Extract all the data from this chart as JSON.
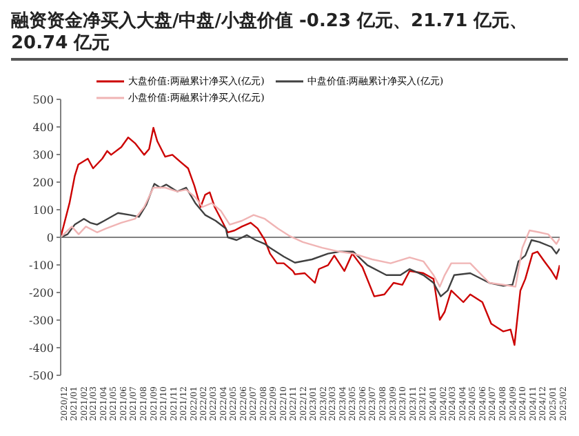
{
  "chart_data": {
    "type": "line",
    "title": "融资资金净买入大盘/中盘/小盘价值 -0.23 亿元、21.71 亿元、20.74 亿元",
    "legend": "top",
    "marker": "none",
    "line_style": "solid",
    "ylim": [
      -500,
      500
    ],
    "yticks": [
      -500,
      -400,
      -300,
      -200,
      -100,
      0,
      100,
      200,
      300,
      400,
      500
    ],
    "xlim": [
      "2020-12-01",
      "2025-02-01"
    ],
    "xticks": [
      {
        "value": "2020-12",
        "label": "2020/12"
      },
      {
        "value": "2021-01",
        "label": "2021/01"
      },
      {
        "value": "2021-02",
        "label": "2021/02"
      },
      {
        "value": "2021-03",
        "label": "2021/03"
      },
      {
        "value": "2021-04",
        "label": "2021/04"
      },
      {
        "value": "2021-05",
        "label": "2021/05"
      },
      {
        "value": "2021-06",
        "label": "2021/06"
      },
      {
        "value": "2021-07",
        "label": "2021/07"
      },
      {
        "value": "2021-08",
        "label": "2021/08"
      },
      {
        "value": "2021-09",
        "label": "2021/09"
      },
      {
        "value": "2021-10",
        "label": "2021/10"
      },
      {
        "value": "2021-11",
        "label": "2021/11"
      },
      {
        "value": "2021-12",
        "label": "2021/12"
      },
      {
        "value": "2022-01",
        "label": "2022/01"
      },
      {
        "value": "2022-02",
        "label": "2022/02"
      },
      {
        "value": "2022-03",
        "label": "2022/03"
      },
      {
        "value": "2022-04",
        "label": "2022/04"
      },
      {
        "value": "2022-05",
        "label": "2022/05"
      },
      {
        "value": "2022-06",
        "label": "2022/06"
      },
      {
        "value": "2022-07",
        "label": "2022/07"
      },
      {
        "value": "2022-08",
        "label": "2022/08"
      },
      {
        "value": "2022-09",
        "label": "2022/09"
      },
      {
        "value": "2022-10",
        "label": "2022/10"
      },
      {
        "value": "2022-11",
        "label": "2022/11"
      },
      {
        "value": "2022-12",
        "label": "2022/12"
      },
      {
        "value": "2023-01",
        "label": "2023/01"
      },
      {
        "value": "2023-02",
        "label": "2023/02"
      },
      {
        "value": "2023-03",
        "label": "2023/03"
      },
      {
        "value": "2023-04",
        "label": "2023/04"
      },
      {
        "value": "2023-05",
        "label": "2023/05"
      },
      {
        "value": "2023-06",
        "label": "2023/06"
      },
      {
        "value": "2023-07",
        "label": "2023/07"
      },
      {
        "value": "2023-08",
        "label": "2023/08"
      },
      {
        "value": "2023-09",
        "label": "2023/09"
      },
      {
        "value": "2023-10",
        "label": "2023/10"
      },
      {
        "value": "2023-11",
        "label": "2023/11"
      },
      {
        "value": "2023-12",
        "label": "2023/12"
      },
      {
        "value": "2024-01",
        "label": "2024/01"
      },
      {
        "value": "2024-02",
        "label": "2024/02"
      },
      {
        "value": "2024-03",
        "label": "2024/03"
      },
      {
        "value": "2024-04",
        "label": "2024/04"
      },
      {
        "value": "2024-05",
        "label": "2024/05"
      },
      {
        "value": "2024-06",
        "label": "2024/06"
      },
      {
        "value": "2024-07",
        "label": "2024/07"
      },
      {
        "value": "2024-08",
        "label": "2024/08"
      },
      {
        "value": "2024-09",
        "label": "2024/09"
      },
      {
        "value": "2024-10",
        "label": "2024/10"
      },
      {
        "value": "2024-11",
        "label": "2024/11"
      },
      {
        "value": "2024-12",
        "label": "2024/12"
      },
      {
        "value": "2025-01",
        "label": "2025/01"
      },
      {
        "value": "2025-02",
        "label": "2025/02"
      }
    ],
    "ref_lines": [
      {
        "axis": "y",
        "value": 0,
        "color": "#808080"
      }
    ],
    "series": [
      {
        "name": "大盘价值:两融累计净买入(亿元)",
        "color": "#cc0000",
        "x": [
          "2020-12-01",
          "2020-12-28",
          "2021-01-13",
          "2021-01-24",
          "2021-02-22",
          "2021-03-10",
          "2021-04-07",
          "2021-04-22",
          "2021-05-04",
          "2021-06-04",
          "2021-06-25",
          "2021-07-16",
          "2021-08-13",
          "2021-08-28",
          "2021-09-10",
          "2021-09-22",
          "2021-10-16",
          "2021-11-07",
          "2021-12-04",
          "2021-12-25",
          "2022-01-13",
          "2022-02-01",
          "2022-02-15",
          "2022-03-01",
          "2022-03-16",
          "2022-04-04",
          "2022-04-25",
          "2022-05-16",
          "2022-06-07",
          "2022-07-04",
          "2022-07-25",
          "2022-08-16",
          "2022-09-01",
          "2022-09-22",
          "2022-10-13",
          "2022-11-10",
          "2022-11-16",
          "2022-12-16",
          "2023-01-16",
          "2023-01-28",
          "2023-02-25",
          "2023-03-16",
          "2023-04-16",
          "2023-05-10",
          "2023-06-10",
          "2023-07-16",
          "2023-08-16",
          "2023-09-13",
          "2023-10-10",
          "2023-11-01",
          "2023-12-13",
          "2024-01-13",
          "2024-02-01",
          "2024-02-16",
          "2024-03-07",
          "2024-04-13",
          "2024-05-04",
          "2024-06-10",
          "2024-07-07",
          "2024-08-13",
          "2024-09-04",
          "2024-09-16",
          "2024-10-04",
          "2024-10-19",
          "2024-11-10",
          "2024-11-25",
          "2024-12-16",
          "2025-01-07",
          "2025-01-22",
          "2025-02-01"
        ],
        "values": [
          0,
          124,
          222,
          264,
          285,
          250,
          285,
          313,
          299,
          327,
          362,
          341,
          299,
          320,
          397,
          348,
          292,
          299,
          271,
          250,
          187,
          110,
          154,
          163,
          110,
          67,
          18,
          25,
          39,
          53,
          32,
          -10,
          -59,
          -94,
          -94,
          -122,
          -134,
          -130,
          -165,
          -115,
          -101,
          -66,
          -122,
          -59,
          -108,
          -214,
          -207,
          -165,
          -172,
          -122,
          -130,
          -151,
          -299,
          -270,
          -193,
          -235,
          -207,
          -235,
          -313,
          -341,
          -334,
          -390,
          -193,
          -151,
          -59,
          -52,
          -87,
          -122,
          -151,
          -101
        ]
      },
      {
        "name": "中盘价值:两融累计净买入(亿元)",
        "color": "#404040",
        "x": [
          "2020-12-01",
          "2020-12-22",
          "2021-01-13",
          "2021-02-10",
          "2021-03-01",
          "2021-03-22",
          "2021-04-13",
          "2021-05-25",
          "2021-07-01",
          "2021-07-28",
          "2021-08-19",
          "2021-09-13",
          "2021-10-01",
          "2021-10-19",
          "2021-11-22",
          "2021-12-19",
          "2022-01-16",
          "2022-02-15",
          "2022-03-19",
          "2022-04-19",
          "2022-04-25",
          "2022-05-22",
          "2022-06-22",
          "2022-07-19",
          "2022-08-16",
          "2022-09-01",
          "2022-10-13",
          "2022-11-16",
          "2023-01-07",
          "2023-02-25",
          "2023-04-01",
          "2023-05-13",
          "2023-06-25",
          "2023-08-22",
          "2023-10-04",
          "2023-11-01",
          "2023-12-13",
          "2024-01-13",
          "2024-02-04",
          "2024-02-25",
          "2024-03-16",
          "2024-05-04",
          "2024-07-01",
          "2024-08-13",
          "2024-09-10",
          "2024-09-28",
          "2024-10-19",
          "2024-11-07",
          "2024-12-01",
          "2025-01-07",
          "2025-01-22",
          "2025-02-01"
        ],
        "values": [
          0,
          11,
          46,
          67,
          53,
          46,
          60,
          88,
          81,
          74,
          117,
          194,
          180,
          191,
          166,
          180,
          124,
          81,
          60,
          32,
          0,
          -10,
          8,
          -10,
          -24,
          -38,
          -70,
          -92,
          -80,
          -59,
          -52,
          -52,
          -101,
          -137,
          -137,
          -115,
          -137,
          -165,
          -214,
          -193,
          -137,
          -130,
          -165,
          -176,
          -172,
          -87,
          -66,
          -10,
          -17,
          -35,
          -59,
          -41
        ]
      },
      {
        "name": "小盘价值:两融累计净买入(亿元)",
        "color": "#f0b4b4",
        "x": [
          "2020-12-01",
          "2021-01-04",
          "2021-01-25",
          "2021-02-16",
          "2021-03-22",
          "2021-04-19",
          "2021-06-04",
          "2021-07-16",
          "2021-08-13",
          "2021-09-10",
          "2021-10-16",
          "2021-11-22",
          "2021-12-19",
          "2022-01-16",
          "2022-02-07",
          "2022-03-07",
          "2022-04-04",
          "2022-05-01",
          "2022-06-07",
          "2022-07-13",
          "2022-08-16",
          "2022-09-25",
          "2022-11-01",
          "2022-12-10",
          "2023-02-07",
          "2023-04-01",
          "2023-05-13",
          "2023-07-10",
          "2023-09-04",
          "2023-11-01",
          "2023-12-13",
          "2024-01-13",
          "2024-02-01",
          "2024-02-16",
          "2024-03-07",
          "2024-05-04",
          "2024-07-01",
          "2024-08-13",
          "2024-09-19",
          "2024-10-10",
          "2024-11-01",
          "2024-12-01",
          "2024-12-28",
          "2025-01-22",
          "2025-02-01"
        ],
        "values": [
          0,
          39,
          11,
          39,
          18,
          32,
          53,
          67,
          110,
          180,
          180,
          166,
          173,
          145,
          110,
          124,
          96,
          46,
          60,
          81,
          67,
          32,
          4,
          -17,
          -38,
          -52,
          -59,
          -80,
          -94,
          -73,
          -87,
          -137,
          -179,
          -137,
          -94,
          -94,
          -165,
          -172,
          -179,
          -38,
          25,
          18,
          11,
          -24,
          -3
        ]
      }
    ]
  }
}
